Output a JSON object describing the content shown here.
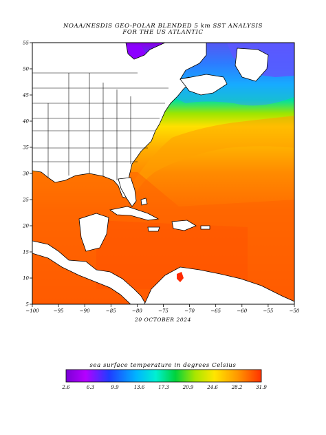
{
  "title": {
    "line1": "NOAA/NESDIS GEO-POLAR BLENDED 5 km SST ANALYSIS",
    "line2": "FOR THE US ATLANTIC"
  },
  "date_label": "20 OCTOBER 2024",
  "axes": {
    "lon_ticks": [
      "−100",
      "−95",
      "−90",
      "−85",
      "−80",
      "−75",
      "−70",
      "−65",
      "−60",
      "−55",
      "−50"
    ],
    "lat_ticks": [
      "55",
      "50",
      "45",
      "40",
      "35",
      "30",
      "25",
      "20",
      "15",
      "10",
      "5"
    ],
    "lon_range": [
      -100,
      -50
    ],
    "lat_range": [
      5,
      55
    ]
  },
  "colorbar": {
    "title": "sea surface temperature in degrees Celsius",
    "tick_labels": [
      "2.6",
      "6.3",
      "9.9",
      "13.6",
      "17.3",
      "20.9",
      "24.6",
      "28.2",
      "31.9"
    ],
    "range": [
      2.6,
      31.9
    ],
    "colors": [
      "#7a00d6",
      "#b500ff",
      "#1f3cff",
      "#00b4ff",
      "#00f0d2",
      "#00d23c",
      "#a8e600",
      "#ffe600",
      "#ff9600",
      "#ff3200"
    ]
  },
  "map": {
    "land_color": "#ffffff",
    "border_color": "#000000",
    "sst_colors": {
      "cold": "#8a00e6",
      "cool": "#00b4ff",
      "mild": "#00e08c",
      "warm": "#ffe000",
      "hot": "#ff7a00",
      "hottest": "#ff4a00"
    }
  }
}
